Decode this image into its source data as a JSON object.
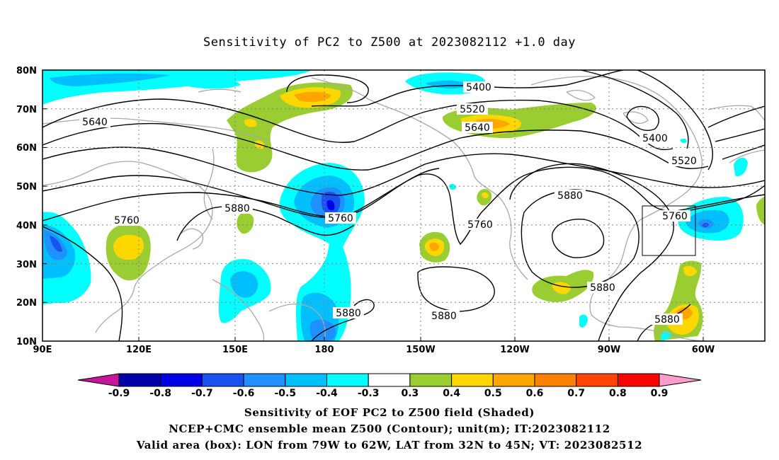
{
  "title": "Sensitivity of PC2 to Z500 at 2023082112 +1.0 day",
  "map": {
    "lat_labels": [
      "80N",
      "70N",
      "60N",
      "50N",
      "40N",
      "30N",
      "20N",
      "10N"
    ],
    "lon_labels": [
      "90E",
      "120E",
      "150E",
      "180",
      "150W",
      "120W",
      "90W",
      "60W"
    ],
    "contour_labels": [
      {
        "text": "5400"
      },
      {
        "text": "5520"
      },
      {
        "text": "5640"
      },
      {
        "text": "5640"
      },
      {
        "text": "5400"
      },
      {
        "text": "5520"
      },
      {
        "text": "5760"
      },
      {
        "text": "5880"
      },
      {
        "text": "5760"
      },
      {
        "text": "5760"
      },
      {
        "text": "5880"
      },
      {
        "text": "5760"
      },
      {
        "text": "5880"
      },
      {
        "text": "5880"
      },
      {
        "text": "5880"
      },
      {
        "text": "5880"
      }
    ],
    "valid_box": {
      "lon_from": "79W",
      "lon_to": "62W",
      "lat_from": "32N",
      "lat_to": "45N"
    }
  },
  "colorbar": {
    "labels": [
      "-0.9",
      "-0.8",
      "-0.7",
      "-0.6",
      "-0.5",
      "-0.4",
      "-0.3",
      "0.3",
      "0.4",
      "0.5",
      "0.6",
      "0.7",
      "0.8",
      "0.9"
    ],
    "colors": [
      "#0000a8",
      "#0000e8",
      "#1852f0",
      "#1e90ff",
      "#00bfff",
      "#00ffff",
      "#ffffff",
      "#9acd32",
      "#ffd700",
      "#ffa500",
      "#ff7f00",
      "#ff4500",
      "#ff0000"
    ],
    "low_arrow_color": "#c8169b",
    "high_arrow_color": "#ff9ecb"
  },
  "captions": [
    "Sensitivity of EOF PC2 to Z500 field (Shaded)",
    "NCEP+CMC ensemble mean Z500 (Contour); unit(m); IT:2023082112",
    "Valid area (box): LON from 79W to 62W, LAT from 32N to 45N; VT: 2023082512"
  ]
}
